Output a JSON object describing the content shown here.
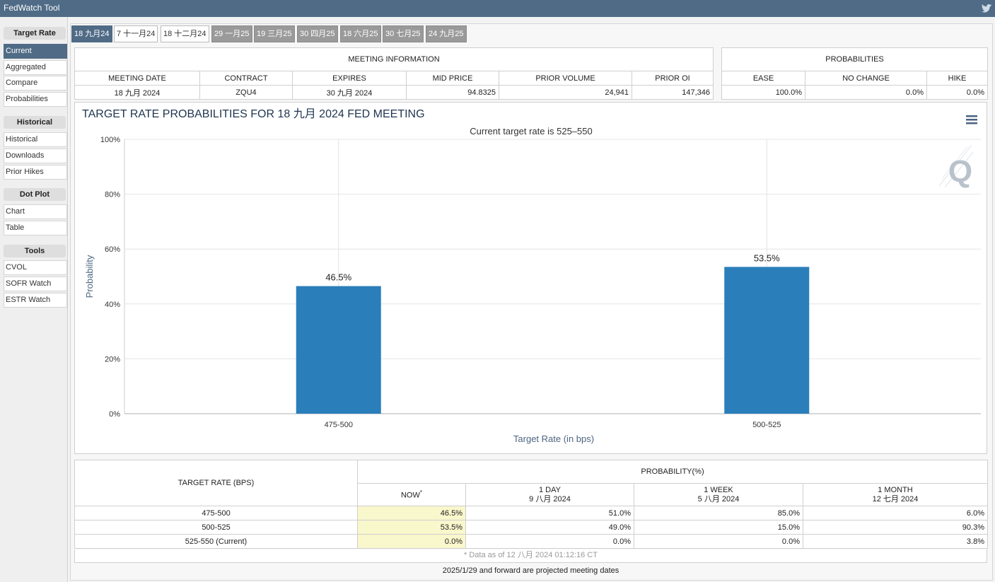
{
  "app": {
    "title": "FedWatch Tool"
  },
  "sidebar": {
    "sections": [
      {
        "title": "Target Rate",
        "items": [
          "Current",
          "Aggregated",
          "Compare",
          "Probabilities"
        ]
      },
      {
        "title": "Historical",
        "items": [
          "Historical",
          "Downloads",
          "Prior Hikes"
        ]
      },
      {
        "title": "Dot Plot",
        "items": [
          "Chart",
          "Table"
        ]
      },
      {
        "title": "Tools",
        "items": [
          "CVOL",
          "SOFR Watch",
          "ESTR Watch"
        ]
      }
    ],
    "active_item": "Current"
  },
  "tabs": [
    "18 九月24",
    "7 十一月24",
    "18 十二月24",
    "29 一月25",
    "19 三月25",
    "30 四月25",
    "18 六月25",
    "30 七月25",
    "24 九月25"
  ],
  "meeting_info": {
    "title": "MEETING INFORMATION",
    "headers": [
      "MEETING DATE",
      "CONTRACT",
      "EXPIRES",
      "MID PRICE",
      "PRIOR VOLUME",
      "PRIOR OI"
    ],
    "row": [
      "18 九月 2024",
      "ZQU4",
      "30 九月 2024",
      "94.8325",
      "24,941",
      "147,346"
    ]
  },
  "probabilities": {
    "title": "PROBABILITIES",
    "headers": [
      "EASE",
      "NO CHANGE",
      "HIKE"
    ],
    "row": [
      "100.0%",
      "0.0%",
      "0.0%"
    ]
  },
  "chart_data": {
    "type": "bar",
    "title": "TARGET RATE PROBABILITIES FOR 18 九月 2024 FED MEETING",
    "subtitle": "Current target rate is 525–550",
    "xlabel": "Target Rate (in bps)",
    "ylabel": "Probability",
    "categories": [
      "475-500",
      "500-525"
    ],
    "values": [
      46.5,
      53.5
    ],
    "data_labels": [
      "46.5%",
      "53.5%"
    ],
    "ylim": [
      0,
      100
    ],
    "yticks": [
      "0%",
      "20%",
      "40%",
      "60%",
      "80%",
      "100%"
    ],
    "grid": true,
    "bar_color": "#2a7fba",
    "watermark": "Q"
  },
  "rate_table": {
    "col_target": "TARGET RATE (BPS)",
    "col_prob": "PROBABILITY(%)",
    "subheaders": [
      {
        "l1": "NOW",
        "l2": ""
      },
      {
        "l1": "1 DAY",
        "l2": "9 八月 2024"
      },
      {
        "l1": "1 WEEK",
        "l2": "5 八月 2024"
      },
      {
        "l1": "1 MONTH",
        "l2": "12 七月 2024"
      }
    ],
    "now_mark": "*",
    "rows": [
      {
        "rate": "475-500",
        "now": "46.5%",
        "day": "51.0%",
        "week": "85.0%",
        "month": "6.0%"
      },
      {
        "rate": "500-525",
        "now": "53.5%",
        "day": "49.0%",
        "week": "15.0%",
        "month": "90.3%"
      },
      {
        "rate": "525-550 (Current)",
        "now": "0.0%",
        "day": "0.0%",
        "week": "0.0%",
        "month": "3.8%"
      }
    ],
    "footnote": "* Data as of 12 八月 2024 01:12:16 CT"
  },
  "projected_note": "2025/1/29 and forward are projected meeting dates",
  "colors": {
    "header": "#4f6b86",
    "bar": "#2a7fba",
    "highlight": "#f9f7cc"
  }
}
